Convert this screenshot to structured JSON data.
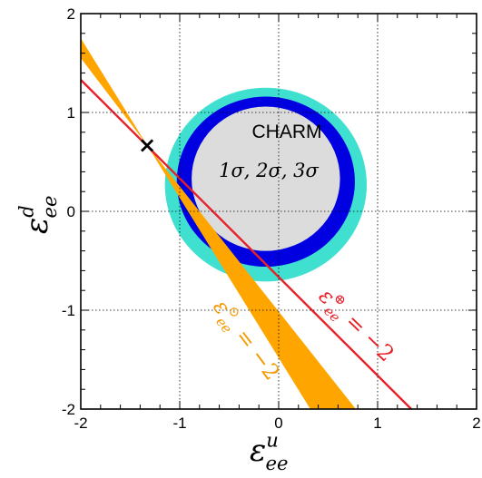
{
  "chart_data": {
    "type": "area",
    "x_ticks": [
      "-2",
      "-1",
      "0",
      "1",
      "2"
    ],
    "y_ticks": [
      "-2",
      "-1",
      "0",
      "1",
      "2"
    ],
    "xlim": [
      -2,
      2
    ],
    "ylim": [
      -2,
      2
    ],
    "grid": true,
    "xlabel_base": "ε",
    "xlabel_sup": "u",
    "xlabel_sub": "ee",
    "ylabel_base": "ε",
    "ylabel_sup": "d",
    "ylabel_sub": "ee",
    "charm_label": "CHARM",
    "sigma_label": "1σ, 2σ, 3σ",
    "earth_label_base": "ε",
    "earth_label_sup": "⊕",
    "earth_label_sub": "ee",
    "earth_label_rest": " = −2",
    "sun_label_base": "ε",
    "sun_label_sup": "⊙",
    "sun_label_sub": "ee",
    "sun_label_rest": " = −2",
    "ellipses": [
      {
        "level": "3σ",
        "color": "#40e0d0",
        "cx": -0.13,
        "cy": 0.27,
        "rx": 1.02,
        "ry": 0.98
      },
      {
        "level": "2σ",
        "color": "#0000e0",
        "cx": -0.13,
        "cy": 0.3,
        "rx": 0.9,
        "ry": 0.86
      },
      {
        "level": "1σ",
        "color": "#dcdcdc",
        "cx": -0.13,
        "cy": 0.33,
        "rx": 0.75,
        "ry": 0.73
      }
    ],
    "earth_line": {
      "color": "#e8202a",
      "points": [
        [
          -2,
          1.33
        ],
        [
          1.34,
          -2
        ]
      ]
    },
    "sun_band": {
      "color": "#ffa500",
      "points": [
        [
          -2,
          1.75
        ],
        [
          -1.33,
          0.67
        ],
        [
          0.78,
          -2
        ],
        [
          0.32,
          -2
        ],
        [
          -1.33,
          0.67
        ],
        [
          -2,
          1.55
        ]
      ]
    },
    "marker": {
      "symbol": "×",
      "x": -1.33,
      "y": 0.67
    }
  }
}
